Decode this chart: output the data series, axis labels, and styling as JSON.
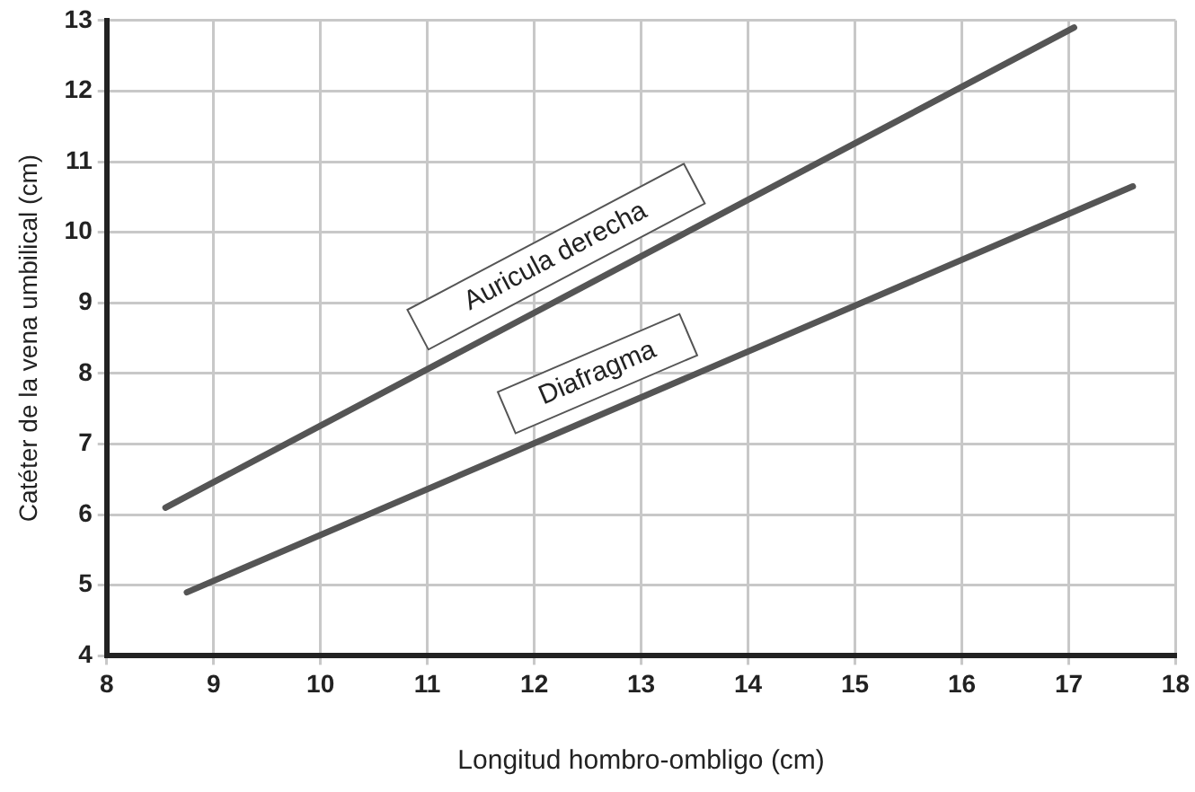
{
  "chart_data": {
    "type": "line",
    "xlabel": "Longitud hombro-ombligo (cm)",
    "ylabel": "Catéter de la vena umbilical (cm)",
    "xlim": [
      8,
      18
    ],
    "xticks": [
      8,
      9,
      10,
      11,
      12,
      13,
      14,
      15,
      16,
      17,
      18
    ],
    "ylim": [
      4,
      13
    ],
    "yticks": [
      4,
      5,
      6,
      7,
      8,
      9,
      10,
      11,
      12,
      13
    ],
    "grid": true,
    "marker": "none",
    "line_style": "solid",
    "series": [
      {
        "name": "Auricula derecha",
        "color": "#555555",
        "x": [
          8.55,
          17.05
        ],
        "values": [
          6.1,
          12.9
        ]
      },
      {
        "name": "Diafragma",
        "color": "#555555",
        "x": [
          8.75,
          17.6
        ],
        "values": [
          4.9,
          10.65
        ]
      }
    ]
  }
}
